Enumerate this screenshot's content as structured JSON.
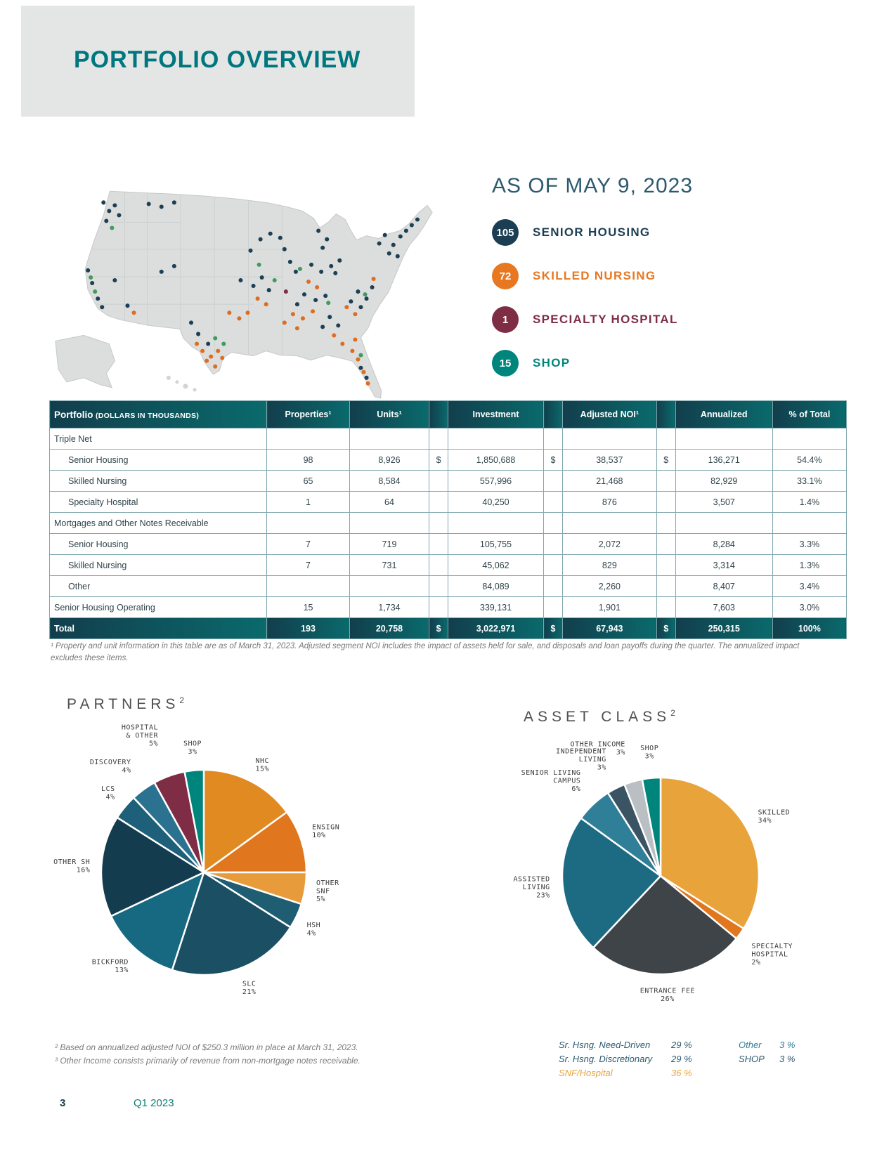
{
  "page": {
    "title": "PORTFOLIO OVERVIEW",
    "footer_page": "3",
    "footer_quarter": "Q1 2023"
  },
  "as_of": {
    "heading": "AS OF MAY 9, 2023",
    "legend": [
      {
        "count": "105",
        "label": "SENIOR HOUSING",
        "color": "#1b3e52"
      },
      {
        "count": "72",
        "label": "SKILLED NURSING",
        "color": "#e87722"
      },
      {
        "count": "1",
        "label": "SPECIALTY HOSPITAL",
        "color": "#7e2d45"
      },
      {
        "count": "15",
        "label": "SHOP",
        "color": "#00857c"
      }
    ]
  },
  "map": {
    "colors": {
      "sh": "#1d3f54",
      "snf": "#e06c1f",
      "hosp": "#7e2d45",
      "shop": "#3f9b5f"
    },
    "dots": [
      [
        88,
        52,
        "sh"
      ],
      [
        96,
        64,
        "sh"
      ],
      [
        104,
        56,
        "sh"
      ],
      [
        92,
        78,
        "sh"
      ],
      [
        110,
        70,
        "sh"
      ],
      [
        100,
        88,
        "shop"
      ],
      [
        152,
        54,
        "sh"
      ],
      [
        170,
        58,
        "sh"
      ],
      [
        188,
        52,
        "sh"
      ],
      [
        66,
        148,
        "sh"
      ],
      [
        72,
        166,
        "sh"
      ],
      [
        80,
        188,
        "sh"
      ],
      [
        86,
        200,
        "sh"
      ],
      [
        76,
        178,
        "shop"
      ],
      [
        70,
        158,
        "shop"
      ],
      [
        104,
        162,
        "sh"
      ],
      [
        122,
        198,
        "sh"
      ],
      [
        131,
        208,
        "snf"
      ],
      [
        170,
        150,
        "sh"
      ],
      [
        188,
        142,
        "sh"
      ],
      [
        212,
        222,
        "sh"
      ],
      [
        222,
        238,
        "sh"
      ],
      [
        236,
        252,
        "sh"
      ],
      [
        228,
        262,
        "snf"
      ],
      [
        240,
        270,
        "snf"
      ],
      [
        250,
        262,
        "snf"
      ],
      [
        234,
        276,
        "snf"
      ],
      [
        246,
        284,
        "snf"
      ],
      [
        220,
        252,
        "snf"
      ],
      [
        256,
        272,
        "snf"
      ],
      [
        246,
        244,
        "shop"
      ],
      [
        258,
        252,
        "shop"
      ],
      [
        266,
        208,
        "snf"
      ],
      [
        280,
        216,
        "snf"
      ],
      [
        292,
        208,
        "snf"
      ],
      [
        282,
        162,
        "sh"
      ],
      [
        300,
        170,
        "sh"
      ],
      [
        312,
        158,
        "sh"
      ],
      [
        322,
        176,
        "sh"
      ],
      [
        306,
        188,
        "snf"
      ],
      [
        318,
        196,
        "snf"
      ],
      [
        296,
        120,
        "sh"
      ],
      [
        310,
        104,
        "sh"
      ],
      [
        324,
        96,
        "sh"
      ],
      [
        308,
        140,
        "shop"
      ],
      [
        338,
        102,
        "sh"
      ],
      [
        344,
        118,
        "sh"
      ],
      [
        352,
        136,
        "sh"
      ],
      [
        360,
        150,
        "sh"
      ],
      [
        330,
        162,
        "shop"
      ],
      [
        392,
        92,
        "sh"
      ],
      [
        404,
        104,
        "sh"
      ],
      [
        398,
        116,
        "sh"
      ],
      [
        382,
        140,
        "sh"
      ],
      [
        396,
        150,
        "sh"
      ],
      [
        410,
        142,
        "sh"
      ],
      [
        422,
        134,
        "sh"
      ],
      [
        416,
        152,
        "sh"
      ],
      [
        366,
        146,
        "shop"
      ],
      [
        378,
        164,
        "snf"
      ],
      [
        390,
        172,
        "snf"
      ],
      [
        346,
        178,
        "hosp"
      ],
      [
        362,
        196,
        "sh"
      ],
      [
        372,
        182,
        "sh"
      ],
      [
        388,
        190,
        "sh"
      ],
      [
        402,
        184,
        "sh"
      ],
      [
        344,
        222,
        "snf"
      ],
      [
        356,
        210,
        "snf"
      ],
      [
        370,
        216,
        "snf"
      ],
      [
        384,
        206,
        "snf"
      ],
      [
        362,
        230,
        "snf"
      ],
      [
        398,
        228,
        "sh"
      ],
      [
        408,
        214,
        "sh"
      ],
      [
        420,
        226,
        "sh"
      ],
      [
        406,
        194,
        "shop"
      ],
      [
        414,
        240,
        "snf"
      ],
      [
        426,
        252,
        "snf"
      ],
      [
        440,
        262,
        "snf"
      ],
      [
        444,
        246,
        "snf"
      ],
      [
        448,
        274,
        "snf"
      ],
      [
        456,
        292,
        "snf"
      ],
      [
        462,
        308,
        "snf"
      ],
      [
        452,
        286,
        "sh"
      ],
      [
        460,
        300,
        "sh"
      ],
      [
        452,
        268,
        "shop"
      ],
      [
        432,
        200,
        "snf"
      ],
      [
        444,
        210,
        "snf"
      ],
      [
        438,
        192,
        "sh"
      ],
      [
        448,
        178,
        "sh"
      ],
      [
        460,
        188,
        "sh"
      ],
      [
        468,
        172,
        "sh"
      ],
      [
        452,
        200,
        "sh"
      ],
      [
        458,
        182,
        "shop"
      ],
      [
        470,
        160,
        "snf"
      ],
      [
        478,
        110,
        "sh"
      ],
      [
        486,
        98,
        "sh"
      ],
      [
        492,
        124,
        "sh"
      ],
      [
        498,
        112,
        "sh"
      ],
      [
        504,
        128,
        "sh"
      ],
      [
        508,
        100,
        "sh"
      ],
      [
        516,
        92,
        "sh"
      ],
      [
        524,
        84,
        "sh"
      ],
      [
        532,
        76,
        "sh"
      ]
    ]
  },
  "table": {
    "header": {
      "title": "Portfolio",
      "subtitle": "(DOLLARS IN THOUSANDS)",
      "columns": [
        "Properties¹",
        "Units¹",
        "",
        "Investment",
        "",
        "Adjusted NOI¹",
        "",
        "Annualized",
        "% of Total"
      ]
    },
    "rows": [
      {
        "label": "Triple Net",
        "type": "section",
        "indent": false,
        "values": [
          "",
          "",
          "",
          "",
          "",
          "",
          "",
          "",
          ""
        ]
      },
      {
        "label": "Senior Housing",
        "type": "data",
        "indent": true,
        "values": [
          "98",
          "8,926",
          "$",
          "1,850,688",
          "$",
          "38,537",
          "$",
          "136,271",
          "54.4%"
        ]
      },
      {
        "label": "Skilled Nursing",
        "type": "data",
        "indent": true,
        "values": [
          "65",
          "8,584",
          "",
          "557,996",
          "",
          "21,468",
          "",
          "82,929",
          "33.1%"
        ]
      },
      {
        "label": "Specialty Hospital",
        "type": "data",
        "indent": true,
        "values": [
          "1",
          "64",
          "",
          "40,250",
          "",
          "876",
          "",
          "3,507",
          "1.4%"
        ]
      },
      {
        "label": "Mortgages and Other Notes Receivable",
        "type": "section",
        "indent": false,
        "values": [
          "",
          "",
          "",
          "",
          "",
          "",
          "",
          "",
          ""
        ]
      },
      {
        "label": "Senior Housing",
        "type": "data",
        "indent": true,
        "values": [
          "7",
          "719",
          "",
          "105,755",
          "",
          "2,072",
          "",
          "8,284",
          "3.3%"
        ]
      },
      {
        "label": "Skilled Nursing",
        "type": "data",
        "indent": true,
        "values": [
          "7",
          "731",
          "",
          "45,062",
          "",
          "829",
          "",
          "3,314",
          "1.3%"
        ]
      },
      {
        "label": "Other",
        "type": "data",
        "indent": true,
        "values": [
          "",
          "",
          "",
          "84,089",
          "",
          "2,260",
          "",
          "8,407",
          "3.4%"
        ]
      },
      {
        "label": "Senior Housing Operating",
        "type": "data",
        "indent": false,
        "values": [
          "15",
          "1,734",
          "",
          "339,131",
          "",
          "1,901",
          "",
          "7,603",
          "3.0%"
        ]
      },
      {
        "label": "Total",
        "type": "total",
        "indent": false,
        "values": [
          "193",
          "20,758",
          "$",
          "3,022,971",
          "$",
          "67,943",
          "$",
          "250,315",
          "100%"
        ]
      }
    ],
    "footnote": "¹ Property and unit information in this table are as of March 31, 2023. Adjusted segment NOI includes the impact of assets held for sale, and disposals and loan payoffs during the quarter. The annualized impact excludes these items."
  },
  "chart_data": [
    {
      "type": "pie",
      "name": "partners",
      "title": "PARTNERS",
      "sup": "2",
      "legend_position": "outside-labels",
      "slices": [
        {
          "label": "NHC",
          "lines": [
            "NHC"
          ],
          "value": 15,
          "pct": "15%",
          "color": "#e08a21",
          "lr": 16
        },
        {
          "label": "ENSIGN",
          "lines": [
            "ENSIGN"
          ],
          "value": 10,
          "pct": "10%",
          "color": "#e0761d",
          "lr": 16
        },
        {
          "label": "OTHER SNF",
          "lines": [
            "OTHER",
            "SNF"
          ],
          "value": 5,
          "pct": "5%",
          "color": "#e89b3a",
          "lr": 16
        },
        {
          "label": "HSH",
          "lines": [
            "HSH"
          ],
          "value": 4,
          "pct": "4%",
          "color": "#1f5d72",
          "lr": 16
        },
        {
          "label": "SLC",
          "lines": [
            "SLC"
          ],
          "value": 21,
          "pct": "21%",
          "color": "#1b4f63",
          "lr": 16
        },
        {
          "label": "BICKFORD",
          "lines": [
            "BICKFORD"
          ],
          "value": 13,
          "pct": "13%",
          "color": "#166981",
          "lr": 16
        },
        {
          "label": "OTHER SH",
          "lines": [
            "OTHER SH"
          ],
          "value": 16,
          "pct": "16%",
          "color": "#143c4f",
          "lr": 16
        },
        {
          "label": "LCS",
          "lines": [
            "LCS"
          ],
          "value": 4,
          "pct": "4%",
          "color": "#1e607a",
          "lr": 18
        },
        {
          "label": "DISCOVERY",
          "lines": [
            "DISCOVERY"
          ],
          "value": 4,
          "pct": "4%",
          "color": "#2b7291",
          "lr": 30
        },
        {
          "label": "HOSPITAL & OTHER",
          "lines": [
            "HOSPITAL",
            "& OTHER"
          ],
          "value": 5,
          "pct": "5%",
          "color": "#7e2d45",
          "lr": 46
        },
        {
          "label": "SHOP",
          "lines": [
            "SHOP"
          ],
          "value": 3,
          "pct": "3%",
          "color": "#00857c",
          "lr": 24
        }
      ]
    },
    {
      "type": "pie",
      "name": "asset-class",
      "title": "ASSET CLASS",
      "sup": "2",
      "legend_position": "outside-labels",
      "slices": [
        {
          "label": "SKILLED",
          "lines": [
            "SKILLED"
          ],
          "value": 34,
          "pct": "34%",
          "color": "#e8a33b",
          "lr": 18
        },
        {
          "label": "SPECIALTY HOSPITAL",
          "lines": [
            "SPECIALTY",
            "HOSPITAL"
          ],
          "value": 2,
          "pct": "2%",
          "color": "#e0761d",
          "lr": 20
        },
        {
          "label": "ENTRANCE FEE",
          "lines": [
            "ENTRANCE FEE"
          ],
          "value": 26,
          "pct": "26%",
          "color": "#3f4448",
          "lr": 18
        },
        {
          "label": "ASSISTED LIVING",
          "lines": [
            "ASSISTED",
            "LIVING"
          ],
          "value": 23,
          "pct": "23%",
          "color": "#1d6a83",
          "lr": 18
        },
        {
          "label": "SENIOR LIVING CAMPUS",
          "lines": [
            "SENIOR LIVING",
            "CAMPUS"
          ],
          "value": 6,
          "pct": "6%",
          "color": "#2f7f99",
          "lr": 26
        },
        {
          "label": "INDEPENDENT LIVING",
          "lines": [
            "INDEPENDENT",
            "LIVING"
          ],
          "value": 3,
          "pct": "3%",
          "color": "#3a5463",
          "lr": 30
        },
        {
          "label": "OTHER INCOME",
          "lines": [
            "OTHER INCOME"
          ],
          "value": 3,
          "pct": "3%",
          "color": "#b9bfc3",
          "lr": 40
        },
        {
          "label": "SHOP",
          "lines": [
            "SHOP"
          ],
          "value": 3,
          "pct": "3%",
          "color": "#00857c",
          "lr": 28
        }
      ]
    }
  ],
  "noi_mix_legend": {
    "col1": [
      {
        "label": "Sr. Hsng. Need-Driven",
        "value": "29 %",
        "color": "#2d5a6e"
      },
      {
        "label": "Sr. Hsng. Discretionary",
        "value": "29 %",
        "color": "#2d5a6e"
      },
      {
        "label": "SNF/Hospital",
        "value": "36 %",
        "color": "#e8a33b"
      }
    ],
    "col2": [
      {
        "label": "Other",
        "value": "3 %",
        "color": "#2f7f99"
      },
      {
        "label": "SHOP",
        "value": "3 %",
        "color": "#2d5a6e"
      }
    ]
  },
  "footnotes": [
    "²  Based on annualized adjusted NOI of $250.3 million in place at March 31, 2023.",
    "³  Other Income consists primarily of revenue from non-mortgage notes receivable."
  ]
}
